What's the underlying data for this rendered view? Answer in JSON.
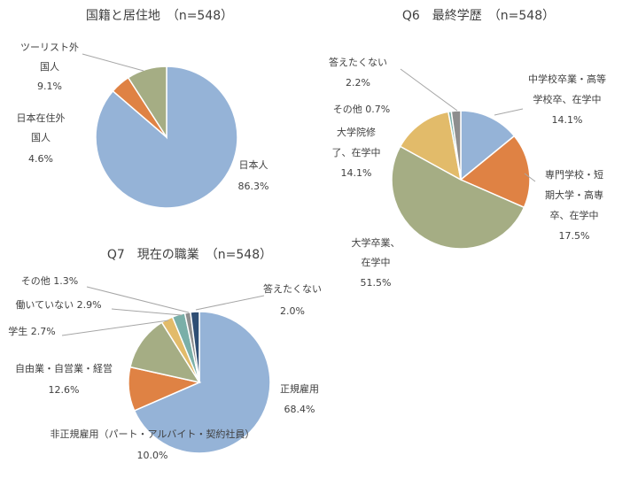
{
  "chart_data": [
    {
      "type": "pie",
      "title": "国籍と居住地　（n=548）",
      "slices": [
        {
          "label": [
            "日本人"
          ],
          "pct": "86.3%",
          "value": 86.3,
          "color": "#95B3D7"
        },
        {
          "label": [
            "日本在住外",
            "国人"
          ],
          "pct": "4.6%",
          "value": 4.6,
          "color": "#DF8244"
        },
        {
          "label": [
            "ツーリスト外",
            "国人"
          ],
          "pct": "9.1%",
          "value": 9.1,
          "color": "#A5AD84"
        }
      ]
    },
    {
      "type": "pie",
      "title": "Q6　最終学歴　（n=548）",
      "slices": [
        {
          "label": [
            "中学校卒業・高等",
            "学校卒、在学中"
          ],
          "pct": "14.1%",
          "value": 14.1,
          "color": "#95B3D7"
        },
        {
          "label": [
            "専門学校・短",
            "期大学・高専",
            "卒、在学中"
          ],
          "pct": "17.5%",
          "value": 17.5,
          "color": "#DF8244"
        },
        {
          "label": [
            "大学卒業、",
            "在学中"
          ],
          "pct": "51.5%",
          "value": 51.5,
          "color": "#A5AD84"
        },
        {
          "label": [
            "大学院修",
            "了、在学中"
          ],
          "pct": "14.1%",
          "value": 14.1,
          "color": "#E2BB6A"
        },
        {
          "label": [
            "その他"
          ],
          "pct": "0.7%",
          "value": 0.7,
          "color": "#7AAFA8"
        },
        {
          "label": [
            "答えたくない"
          ],
          "pct": "2.2%",
          "value": 2.2,
          "color": "#8E8E8E"
        }
      ]
    },
    {
      "type": "pie",
      "title": "Q7　現在の職業　（n=548）",
      "slices": [
        {
          "label": [
            "正規雇用"
          ],
          "pct": "68.4%",
          "value": 68.4,
          "color": "#95B3D7"
        },
        {
          "label": [
            "非正規雇用（パート・アルバイト・契約社員）"
          ],
          "pct": "10.0%",
          "value": 10.0,
          "color": "#DF8244"
        },
        {
          "label": [
            "自由業・自営業・経営"
          ],
          "pct": "12.6%",
          "value": 12.6,
          "color": "#A5AD84"
        },
        {
          "label": [
            "学生"
          ],
          "pct": "2.7%",
          "value": 2.7,
          "color": "#E2BB6A"
        },
        {
          "label": [
            "働いていない"
          ],
          "pct": "2.9%",
          "value": 2.9,
          "color": "#7AAFA8"
        },
        {
          "label": [
            "その他"
          ],
          "pct": "1.3%",
          "value": 1.3,
          "color": "#8E8E8E"
        },
        {
          "label": [
            "答えたくない"
          ],
          "pct": "2.0%",
          "value": 2.0,
          "color": "#2F4E74"
        }
      ]
    }
  ]
}
